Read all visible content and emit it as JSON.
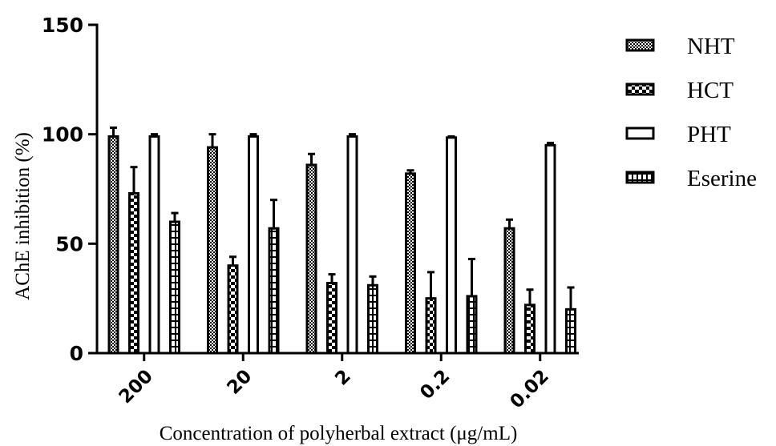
{
  "chart_data": {
    "type": "bar",
    "title": "",
    "xlabel": "Concentration of polyherbal extract (μg/mL)",
    "ylabel": "AChE inhibition (%)",
    "ylim": [
      0,
      150
    ],
    "yticks": [
      "0",
      "50",
      "100",
      "150"
    ],
    "categories": [
      "200",
      "20",
      "2",
      "0.2",
      "0.02"
    ],
    "series": [
      {
        "name": "NHT",
        "pattern": "checker",
        "values": [
          99,
          94,
          86,
          82,
          57
        ],
        "errors": [
          4,
          6,
          5,
          1.5,
          4
        ]
      },
      {
        "name": "HCT",
        "pattern": "brick",
        "values": [
          73,
          40,
          32,
          25,
          22
        ],
        "errors": [
          12,
          4,
          4,
          12,
          7
        ]
      },
      {
        "name": "PHT",
        "pattern": "solid",
        "values": [
          99,
          99,
          99,
          98.5,
          95
        ],
        "errors": [
          1,
          1,
          1,
          0.5,
          1
        ]
      },
      {
        "name": "Eserine",
        "pattern": "vertical",
        "values": [
          60,
          57,
          31,
          26,
          20
        ],
        "errors": [
          4,
          13,
          4,
          17,
          10
        ]
      }
    ],
    "legend_position": "right",
    "grid": false,
    "colors": {
      "stroke": "#000000",
      "fill": "#ffffff"
    }
  }
}
